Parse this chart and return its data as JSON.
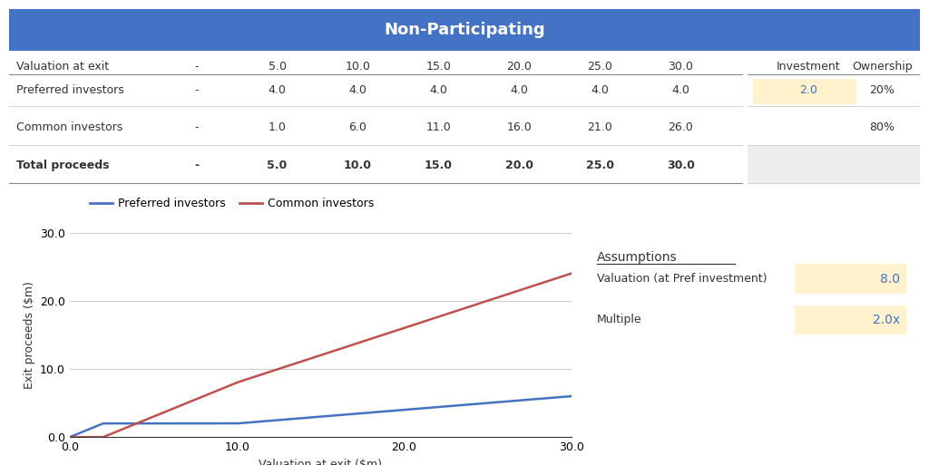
{
  "title": "Non-Participating",
  "title_bg_color": "#4472C4",
  "title_text_color": "#FFFFFF",
  "header_vals": [
    "Valuation at exit",
    "-",
    "5.0",
    "10.0",
    "15.0",
    "20.0",
    "25.0",
    "30.0"
  ],
  "row_labels": [
    "Preferred investors",
    "Common investors",
    "Total proceeds"
  ],
  "row_bold": [
    false,
    false,
    true
  ],
  "row_values": [
    [
      "-",
      "4.0",
      "4.0",
      "4.0",
      "4.0",
      "4.0",
      "4.0"
    ],
    [
      "-",
      "1.0",
      "6.0",
      "11.0",
      "16.0",
      "21.0",
      "26.0"
    ],
    [
      "-",
      "5.0",
      "10.0",
      "15.0",
      "20.0",
      "25.0",
      "30.0"
    ]
  ],
  "right_headers": [
    "Investment",
    "Ownership"
  ],
  "right_row1": [
    "2.0",
    "20%"
  ],
  "right_row2": [
    "",
    "80%"
  ],
  "highlight_color": "#FFF2CC",
  "highlight_text_color": "#4472C4",
  "gray_color": "#EEEEEE",
  "assumptions_title": "Assumptions",
  "assumptions_rows": [
    {
      "label": "Valuation (at Pref investment)",
      "value": "8.0"
    },
    {
      "label": "Multiple",
      "value": "2.0x"
    }
  ],
  "legend_preferred": "Preferred investors",
  "legend_common": "Common investors",
  "preferred_color": "#4472C4",
  "common_color": "#C0504D",
  "xlabel": "Valuation at exit ($m)",
  "ylabel": "Exit proceeds ($m)",
  "xlim": [
    0.0,
    30.0
  ],
  "ylim": [
    0.0,
    30.0
  ],
  "xticks": [
    0.0,
    10.0,
    20.0,
    30.0
  ],
  "yticks": [
    0.0,
    10.0,
    20.0,
    30.0
  ],
  "background_color": "#FFFFFF",
  "investment": 2.0,
  "pref_ownership": 0.2
}
